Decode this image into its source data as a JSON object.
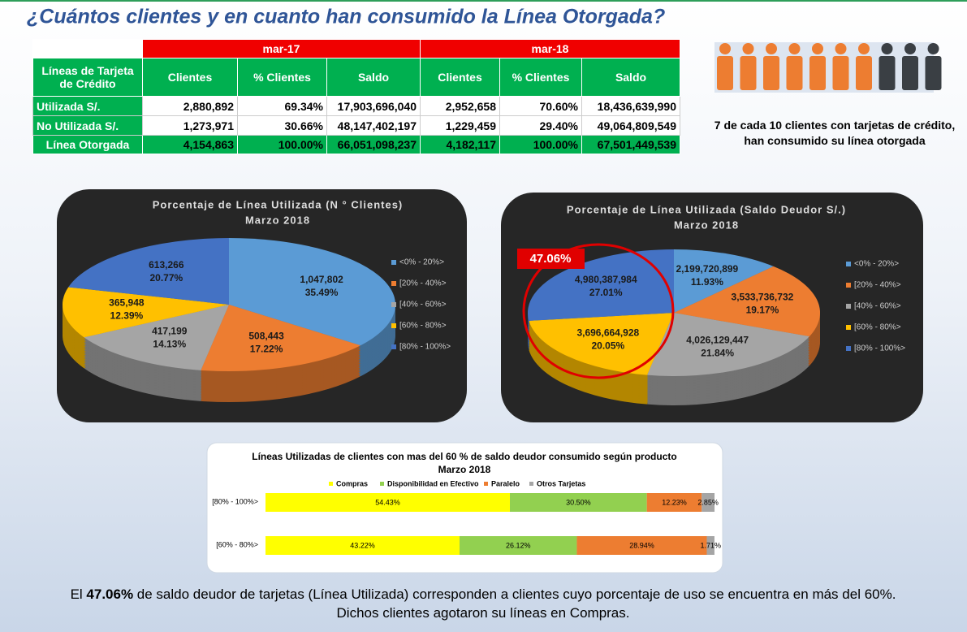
{
  "title": "¿Cuántos clientes y en cuanto  han consumido la Línea Otorgada?",
  "table": {
    "periods": [
      "mar-17",
      "mar-18"
    ],
    "columns": [
      "Líneas de Tarjeta de Crédito",
      "Clientes",
      "% Clientes",
      "Saldo",
      "Clientes",
      "% Clientes",
      "Saldo"
    ],
    "rows": [
      [
        "Utilizada S/.",
        "2,880,892",
        "69.34%",
        "17,903,696,040",
        "2,952,658",
        "70.60%",
        "18,436,639,990"
      ],
      [
        "No Utilizada S/.",
        "1,273,971",
        "30.66%",
        "48,147,402,197",
        "1,229,459",
        "29.40%",
        "49,064,809,549"
      ],
      [
        "Línea Otorgada",
        "4,154,863",
        "100.00%",
        "66,051,098,237",
        "4,182,117",
        "100.00%",
        "67,501,449,539"
      ]
    ]
  },
  "note": "7 de cada 10 clientes con tarjetas de crédito, han consumido su  línea otorgada",
  "chart_data": [
    {
      "type": "pie",
      "title": "Porcentaje  de Línea Utilizada (N ° Clientes)",
      "subtitle": "Marzo 2018",
      "categories": [
        "<0% - 20%>",
        "[20% - 40%>",
        "[40% - 60%>",
        "[60% - 80%>",
        "[80% - 100%>"
      ],
      "values": [
        1047802,
        508443,
        417199,
        365948,
        613266
      ],
      "value_labels": [
        "1,047,802",
        "508,443",
        "417,199",
        "365,948",
        "613,266"
      ],
      "percent_labels": [
        "35.49%",
        "17.22%",
        "14.13%",
        "12.39%",
        "20.77%"
      ],
      "colors": [
        "#5b9bd5",
        "#ed7d31",
        "#a5a5a5",
        "#ffc000",
        "#4472c4"
      ]
    },
    {
      "type": "pie",
      "title": "Porcentaje de  Línea Utilizada (Saldo Deudor S/.)",
      "subtitle": "Marzo 2018",
      "categories": [
        "<0% - 20%>",
        "[20% - 40%>",
        "[40% - 60%>",
        "[60% - 80%>",
        "[80% - 100%>"
      ],
      "values": [
        2199720899,
        3533736732,
        4026129447,
        3696664928,
        4980387984
      ],
      "value_labels": [
        "2,199,720,899",
        "3,533,736,732",
        "4,026,129,447",
        "3,696,664,928",
        "4,980,387,984"
      ],
      "percent_labels": [
        "11.93%",
        "19.17%",
        "21.84%",
        "20.05%",
        "27.01%"
      ],
      "colors": [
        "#5b9bd5",
        "#ed7d31",
        "#a5a5a5",
        "#ffc000",
        "#4472c4"
      ],
      "annotation": "47.06%"
    },
    {
      "type": "stacked_barh",
      "title": "Líneas Utilizadas de clientes con mas del 60 % de saldo deudor consumido según producto",
      "subtitle": "Marzo 2018",
      "categories": [
        "[80% - 100%>",
        "[60% - 80%>"
      ],
      "xlim": [
        0,
        100
      ],
      "series": [
        {
          "name": "Compras",
          "color": "#ffff00",
          "values": [
            54.43,
            43.22
          ],
          "value_labels": [
            "54.43%",
            "43.22%"
          ]
        },
        {
          "name": "Disponibilidad en Efectivo",
          "color": "#92d050",
          "values": [
            30.5,
            26.12
          ],
          "value_labels": [
            "30.50%",
            "26.12%"
          ]
        },
        {
          "name": "Paralelo",
          "color": "#ed7d31",
          "values": [
            12.23,
            28.94
          ],
          "value_labels": [
            "12.23%",
            "28.94%"
          ]
        },
        {
          "name": "Otros Tarjetas",
          "color": "#a5a5a5",
          "values": [
            2.85,
            1.71
          ],
          "value_labels": [
            "2.85%",
            "1.71%"
          ]
        }
      ]
    }
  ],
  "footer": {
    "before": "El ",
    "bold": "47.06%",
    "after": " de saldo deudor de tarjetas (Línea Utilizada) corresponden a clientes  cuyo porcentaje de uso se encuentra en más del 60%. Dichos clientes agotaron su líneas en Compras."
  }
}
